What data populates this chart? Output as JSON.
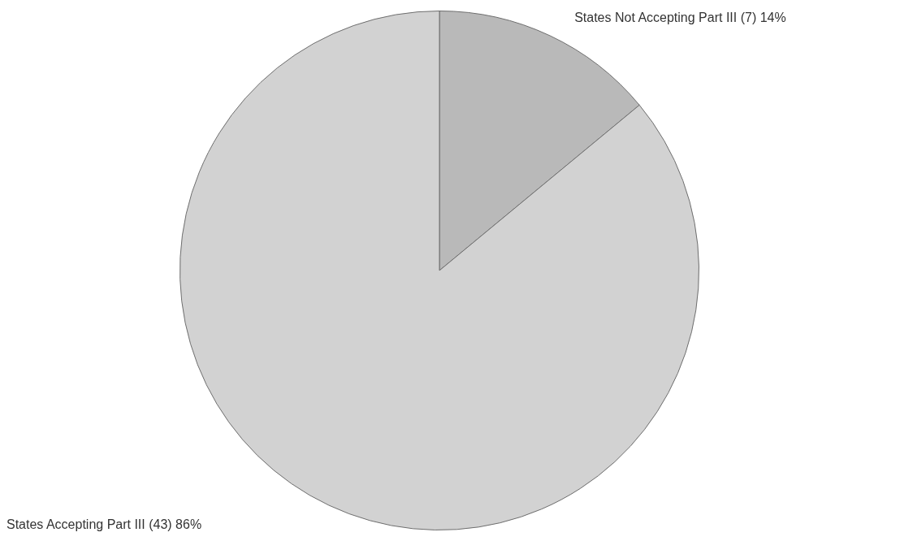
{
  "chart_data": {
    "type": "pie",
    "categories": [
      "States Not Accepting Part III",
      "States Accepting Part III"
    ],
    "values": [
      7,
      43
    ],
    "value_labels": [
      "(7) 14%",
      "(43) 86%"
    ],
    "colors": [
      "#b9b9b9",
      "#d2d2d2"
    ],
    "legend": false
  }
}
